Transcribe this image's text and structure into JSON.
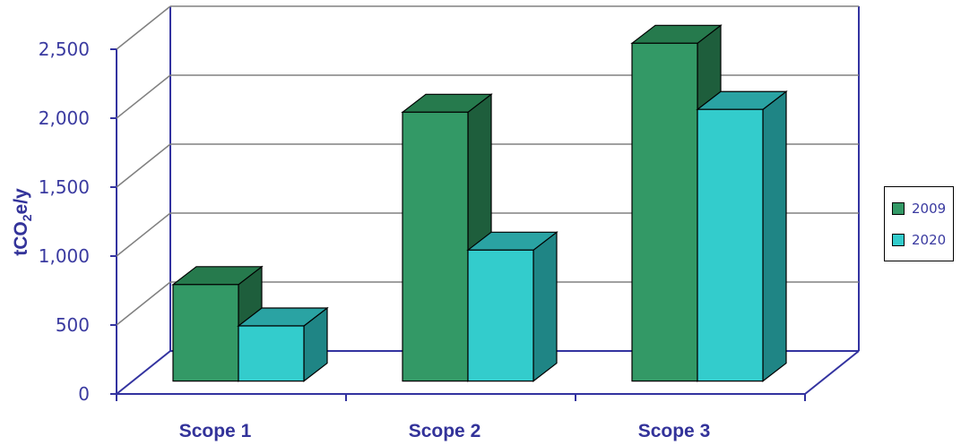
{
  "chart_data": {
    "type": "bar",
    "categories": [
      "Scope 1",
      "Scope 2",
      "Scope 3"
    ],
    "series": [
      {
        "name": "2009",
        "values": [
          700,
          1950,
          2450
        ]
      },
      {
        "name": "2020",
        "values": [
          400,
          950,
          1970
        ]
      }
    ],
    "ylabel_main": "tCO",
    "ylabel_sub": "2",
    "ylabel_rest": "e/y",
    "ylim": [
      0,
      2500
    ],
    "yticks": [
      0,
      500,
      1000,
      1500,
      2000,
      2500
    ],
    "ytick_labels": [
      "0",
      "500",
      "1,000",
      "1,500",
      "2,000",
      "2,500"
    ],
    "grid": true,
    "legend_position": "right",
    "style": "3d-column",
    "colors": {
      "2009": {
        "front": "#339966",
        "top": "#267a4d",
        "side": "#1e5e3c"
      },
      "2020": {
        "front": "#33cccc",
        "top": "#2aa3a3",
        "side": "#1f8585"
      },
      "axis": "#3333a0",
      "grid": "#808080"
    }
  },
  "legend": {
    "items": [
      {
        "label": "2009",
        "color": "#339966"
      },
      {
        "label": "2020",
        "color": "#33cccc"
      }
    ]
  }
}
